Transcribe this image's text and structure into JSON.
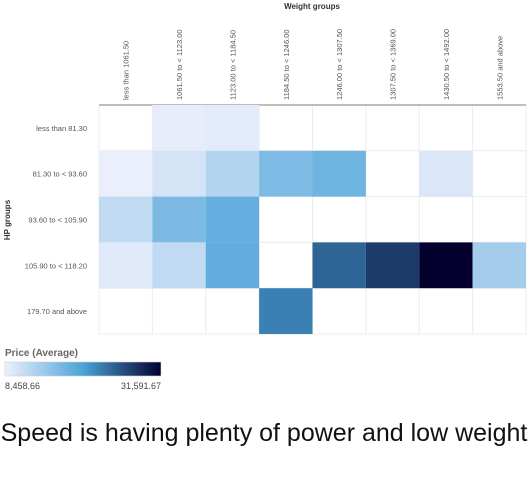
{
  "chart_data": {
    "type": "heatmap",
    "x_title": "Weight groups",
    "y_title": "HP groups",
    "x_categories": [
      "less than 1061.50",
      "1061.50 to < 1123.00",
      "1123.00 to < 1184.50",
      "1184.50 to < 1246.00",
      "1246.00 to < 1307.50",
      "1307.50 to < 1369.00",
      "1430.50 to < 1492.00",
      "1553.50 and above"
    ],
    "y_categories": [
      "less than 81.30",
      "81.30 to < 93.60",
      "93.60 to < 105.90",
      "105.90 to < 118.20",
      "179.70 and above"
    ],
    "values": [
      [
        null,
        9000,
        9200,
        null,
        null,
        null,
        null,
        null
      ],
      [
        8700,
        10300,
        12600,
        16400,
        17500,
        null,
        9800,
        null
      ],
      [
        11600,
        16500,
        18200,
        null,
        null,
        null,
        null,
        null
      ],
      [
        9500,
        11800,
        18500,
        null,
        24500,
        27500,
        31591.67,
        13700
      ],
      [
        null,
        null,
        null,
        22500,
        null,
        null,
        null,
        null
      ]
    ],
    "legend": {
      "title": "Price (Average)",
      "min": 8458.66,
      "max": 31591.67,
      "min_label": "8,458.66",
      "max_label": "31,591.67"
    },
    "colors": {
      "low": "#eef0fc",
      "mid": "#4aa3d9",
      "high": "#03002e"
    }
  },
  "caption": "Speed is having plenty of power and low weight"
}
